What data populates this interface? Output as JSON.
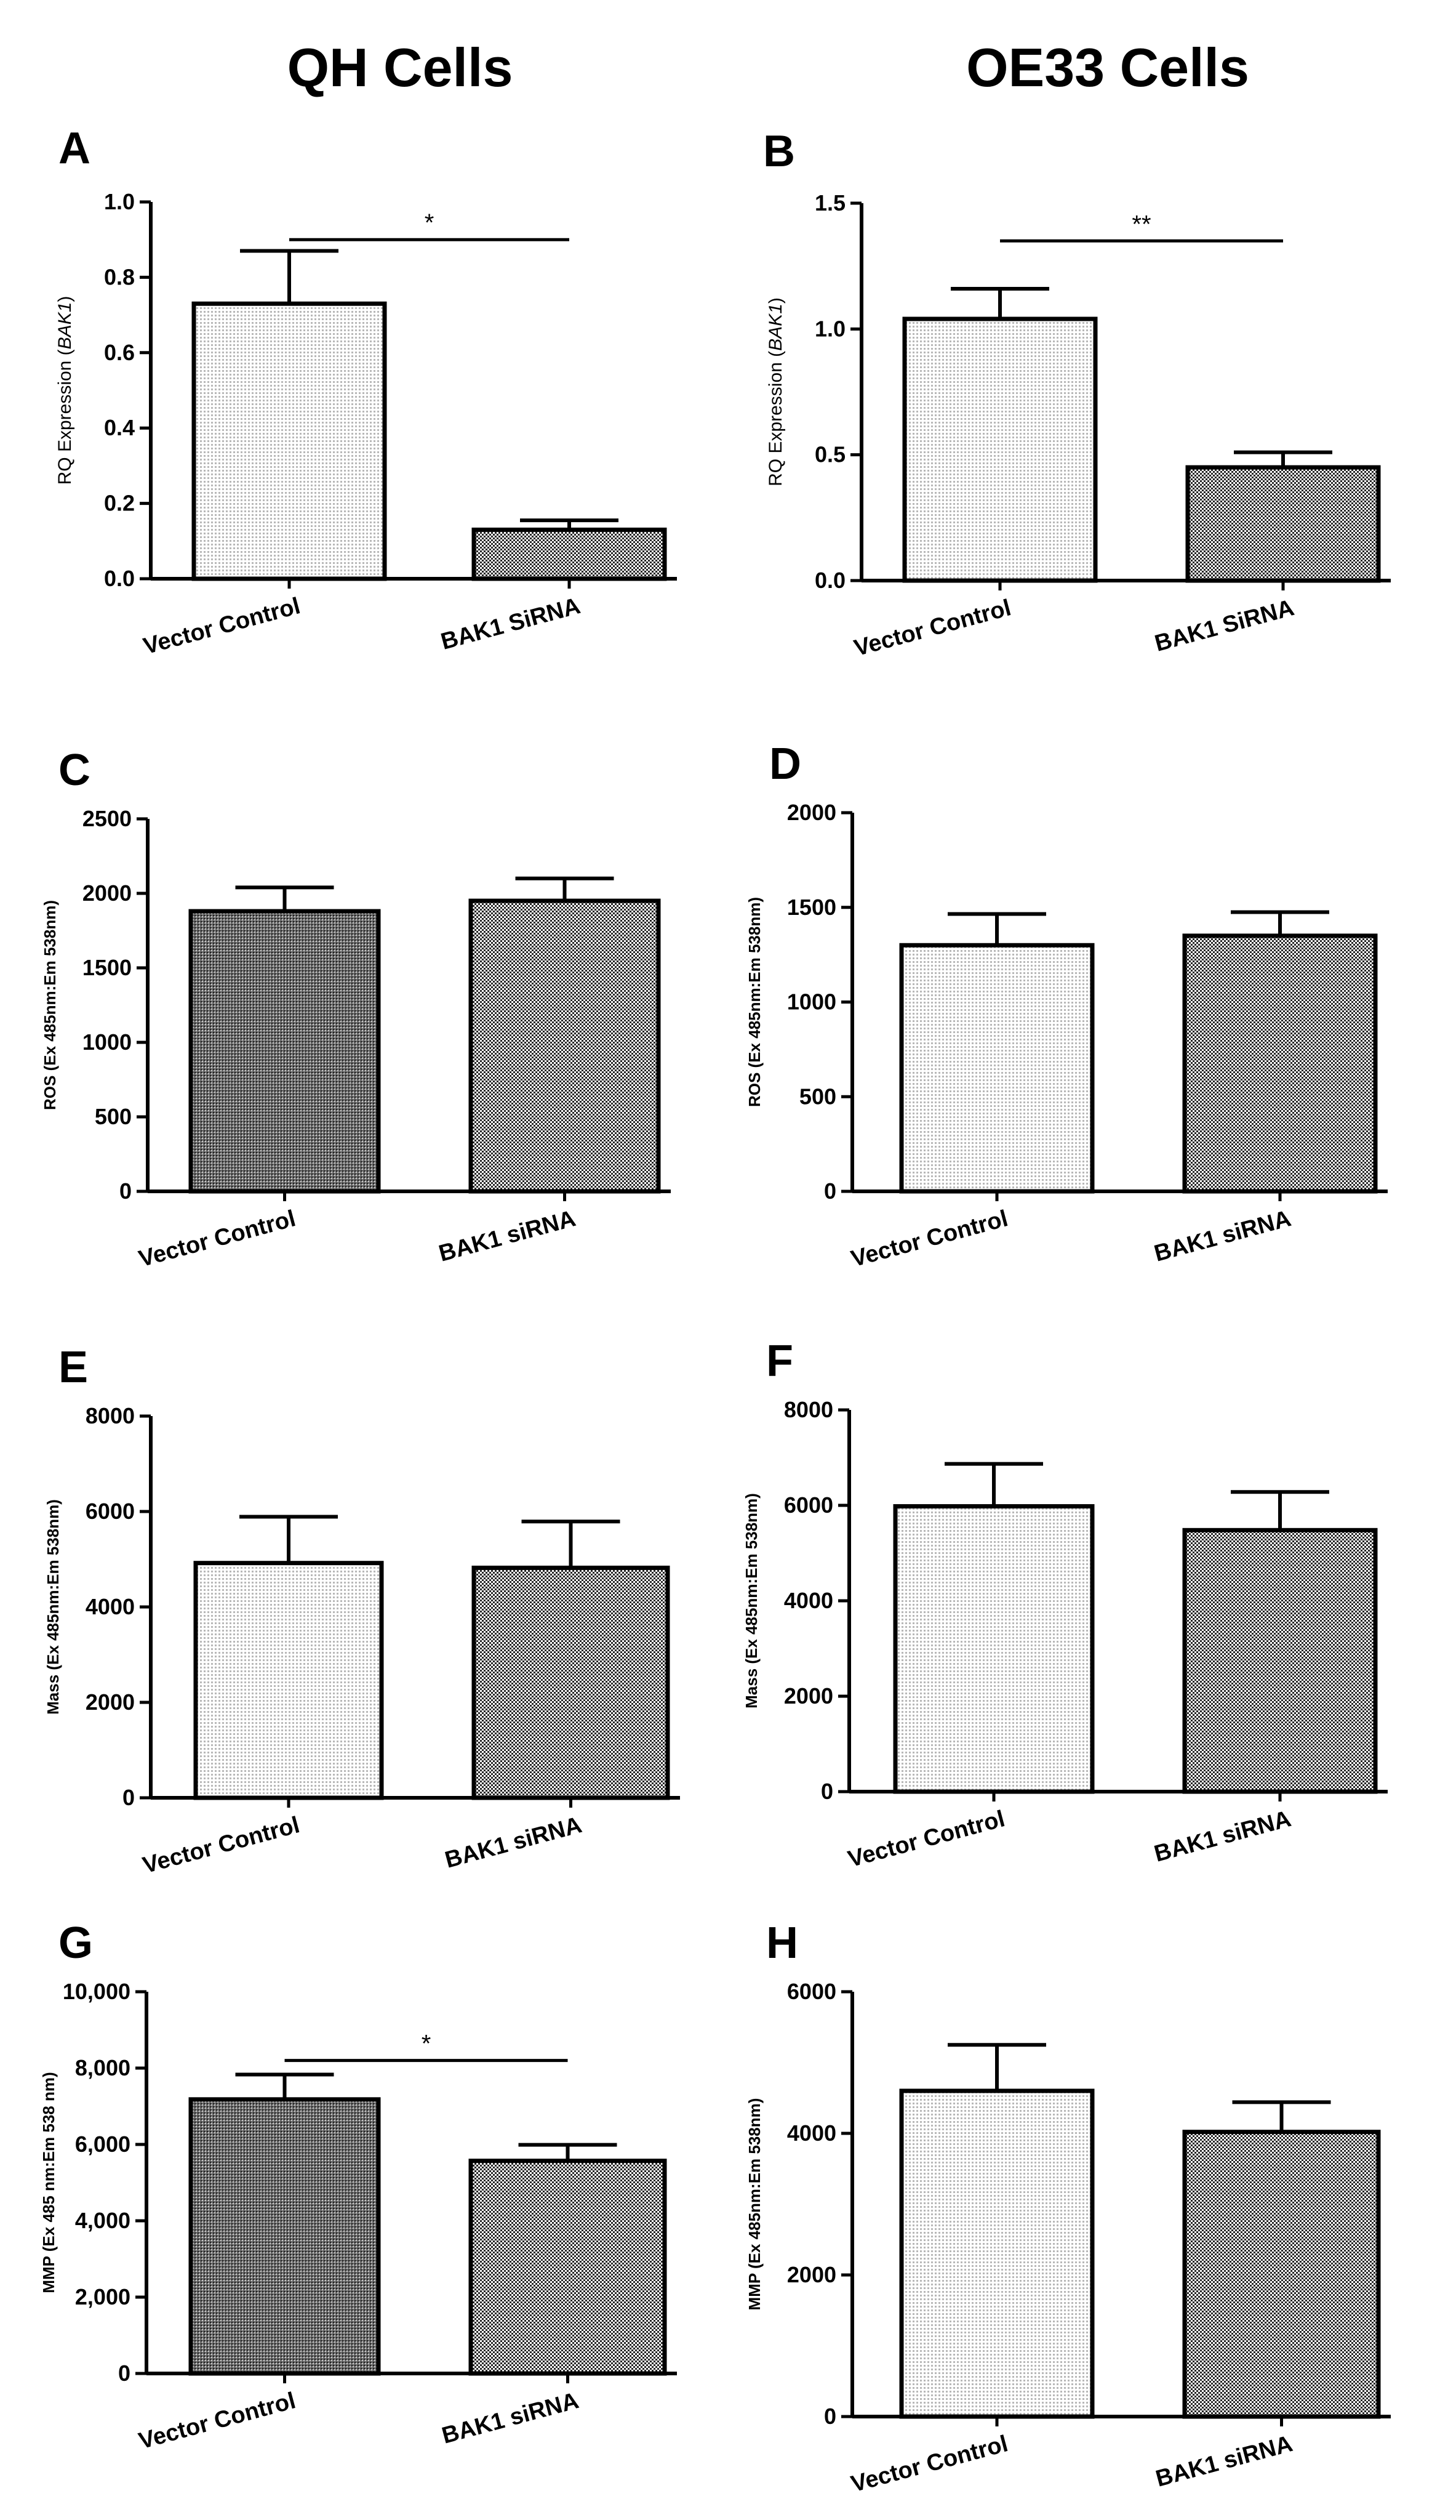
{
  "column_titles": {
    "left": "QH Cells",
    "right": "OE33 Cells"
  },
  "chart_data": [
    {
      "panel": "A",
      "type": "bar",
      "categories": [
        "Vector Control",
        "BAK1 SiRNA"
      ],
      "values": [
        0.73,
        0.13
      ],
      "errors": [
        0.14,
        0.025
      ],
      "ylabel": "RQ Expression (BAK1)",
      "ylabel_italic": "BAK1",
      "ylim": [
        0,
        1.0
      ],
      "yticks": [
        "0.0",
        "0.2",
        "0.4",
        "0.6",
        "0.8",
        "1.0"
      ],
      "significance": {
        "label": "*",
        "value": 0.9
      },
      "colors": [
        "#dedede",
        "#a8a8a8"
      ]
    },
    {
      "panel": "B",
      "type": "bar",
      "categories": [
        "Vector Control",
        "BAK1 SiRNA"
      ],
      "values": [
        1.04,
        0.45
      ],
      "errors": [
        0.12,
        0.06
      ],
      "ylabel": "RQ Expression (BAK1)",
      "ylabel_italic": "BAK1",
      "ylim": [
        0,
        1.5
      ],
      "yticks": [
        "0.0",
        "0.5",
        "1.0",
        "1.5"
      ],
      "significance": {
        "label": "**",
        "value": 1.35
      },
      "colors": [
        "#dedede",
        "#a8a8a8"
      ]
    },
    {
      "panel": "C",
      "type": "bar",
      "categories": [
        "Vector Control",
        "BAK1 siRNA"
      ],
      "values": [
        1880,
        1950
      ],
      "errors": [
        160,
        150
      ],
      "ylabel": "ROS (Ex 485nm:Em 538nm)",
      "ylim": [
        0,
        2500
      ],
      "yticks": [
        "0",
        "500",
        "1000",
        "1500",
        "2000",
        "2500"
      ],
      "significance": null,
      "colors": [
        "#8a8a8a",
        "#a8a8a8"
      ]
    },
    {
      "panel": "D",
      "type": "bar",
      "categories": [
        "Vector Control",
        "BAK1 siRNA"
      ],
      "values": [
        1300,
        1350
      ],
      "errors": [
        165,
        125
      ],
      "ylabel": "ROS (Ex 485nm:Em 538nm)",
      "ylim": [
        0,
        2000
      ],
      "yticks": [
        "0",
        "500",
        "1000",
        "1500",
        "2000"
      ],
      "significance": null,
      "colors": [
        "#dedede",
        "#a8a8a8"
      ]
    },
    {
      "panel": "E",
      "type": "bar",
      "categories": [
        "Vector Control",
        "BAK1 siRNA"
      ],
      "values": [
        4920,
        4820
      ],
      "errors": [
        970,
        970
      ],
      "ylabel": "Mass (Ex 485nm:Em 538nm)",
      "ylim": [
        0,
        8000
      ],
      "yticks": [
        "0",
        "2000",
        "4000",
        "6000",
        "8000"
      ],
      "significance": null,
      "colors": [
        "#dedede",
        "#a8a8a8"
      ]
    },
    {
      "panel": "F",
      "type": "bar",
      "categories": [
        "Vector Control",
        "BAK1 siRNA"
      ],
      "values": [
        5980,
        5480
      ],
      "errors": [
        890,
        800
      ],
      "ylabel": "Mass (Ex 485nm:Em 538nm)",
      "ylim": [
        0,
        8000
      ],
      "yticks": [
        "0",
        "2000",
        "4000",
        "6000",
        "8000"
      ],
      "significance": null,
      "colors": [
        "#dedede",
        "#a8a8a8"
      ]
    },
    {
      "panel": "G",
      "type": "bar",
      "categories": [
        "Vector Control",
        "BAK1 siRNA"
      ],
      "values": [
        7180,
        5570
      ],
      "errors": [
        650,
        420
      ],
      "ylabel": "MMP (Ex 485 nm:Em 538 nm)",
      "ylim": [
        0,
        10000
      ],
      "yticks": [
        "0",
        "2,000",
        "4,000",
        "6,000",
        "8,000",
        "10,000"
      ],
      "significance": {
        "label": "*",
        "value": 8200
      },
      "colors": [
        "#8a8a8a",
        "#a8a8a8"
      ]
    },
    {
      "panel": "H",
      "type": "bar",
      "categories": [
        "Vector Control",
        "BAK1 siRNA"
      ],
      "values": [
        4600,
        4020
      ],
      "errors": [
        650,
        420
      ],
      "ylabel": "MMP (Ex 485nm:Em 538nm)",
      "ylim": [
        0,
        6000
      ],
      "yticks": [
        "0",
        "2000",
        "4000",
        "6000"
      ],
      "significance": null,
      "colors": [
        "#dedede",
        "#a8a8a8"
      ]
    }
  ]
}
